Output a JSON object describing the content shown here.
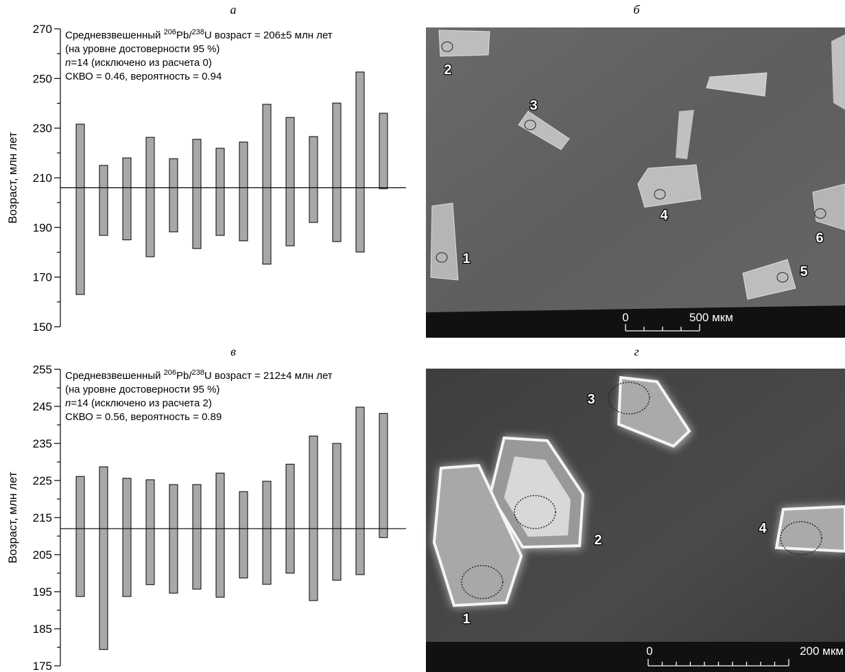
{
  "chart_data": [
    {
      "type": "range_bar",
      "panel_label": "а",
      "y_label": "Возраст, млн лет",
      "annotation": [
        [
          "Средневзвешенный ",
          "206",
          "Pb/",
          "238",
          "U возраст = 206±5 млн лет"
        ],
        [
          "(на уровне достоверности 95 %)"
        ],
        [
          "n",
          "=14 (исключено из расчета 0)"
        ],
        [
          "СКВО = 0.46, вероятность = 0.94"
        ]
      ],
      "weighted_mean": 206,
      "values": [
        [
          163,
          231.6
        ],
        [
          186.8,
          215
        ],
        [
          185,
          218
        ],
        [
          178.2,
          226.3
        ],
        [
          188.2,
          217.7
        ],
        [
          181.5,
          225.5
        ],
        [
          186.8,
          221.9
        ],
        [
          184.6,
          224.4
        ],
        [
          175.2,
          239.6
        ],
        [
          182.6,
          234.3
        ],
        [
          192,
          226.6
        ],
        [
          184.3,
          240.1
        ],
        [
          180.1,
          252.6
        ],
        [
          205.6,
          236
        ]
      ],
      "color": "#a8a8a8",
      "ylim": [
        150,
        270
      ],
      "yticks": [
        150,
        170,
        190,
        210,
        230,
        250,
        270
      ],
      "yminorticks": [
        160,
        180,
        200,
        220,
        240,
        260
      ]
    },
    {
      "type": "range_bar",
      "panel_label": "в",
      "y_label": "Возраст, млн лет",
      "annotation": [
        [
          "Средневзвешенный ",
          "206",
          "Pb/",
          "238",
          "U возраст = 212±4 млн лет"
        ],
        [
          "(на уровне достоверности 95 %)"
        ],
        [
          "n",
          "=14 (исключено из расчета 2)"
        ],
        [
          "СКВО = 0.56, вероятность = 0.89"
        ]
      ],
      "weighted_mean": 212,
      "values": [
        [
          193.7,
          226.1
        ],
        [
          179.4,
          228.7
        ],
        [
          193.7,
          225.6
        ],
        [
          196.9,
          225.2
        ],
        [
          194.6,
          223.9
        ],
        [
          195.7,
          223.9
        ],
        [
          193.5,
          227
        ],
        [
          198.7,
          222
        ],
        [
          197,
          224.8
        ],
        [
          200,
          229.4
        ],
        [
          192.6,
          237
        ],
        [
          198.1,
          235
        ],
        [
          199.6,
          244.8
        ],
        [
          209.6,
          243.1
        ]
      ],
      "color": "#a8a8a8",
      "ylim": [
        175,
        255
      ],
      "yticks": [
        175,
        185,
        195,
        205,
        215,
        225,
        235,
        245,
        255
      ],
      "yminorticks": [
        180,
        190,
        200,
        210,
        220,
        230,
        240,
        250
      ]
    }
  ],
  "images": [
    {
      "panel_label": "б",
      "grain_labels": [
        "1",
        "2",
        "3",
        "4",
        "5",
        "6"
      ],
      "scale_labels": [
        "0",
        "500 мкм"
      ]
    },
    {
      "panel_label": "г",
      "grain_labels": [
        "1",
        "2",
        "3",
        "4"
      ],
      "scale_labels": [
        "0",
        "200 мкм"
      ]
    }
  ]
}
